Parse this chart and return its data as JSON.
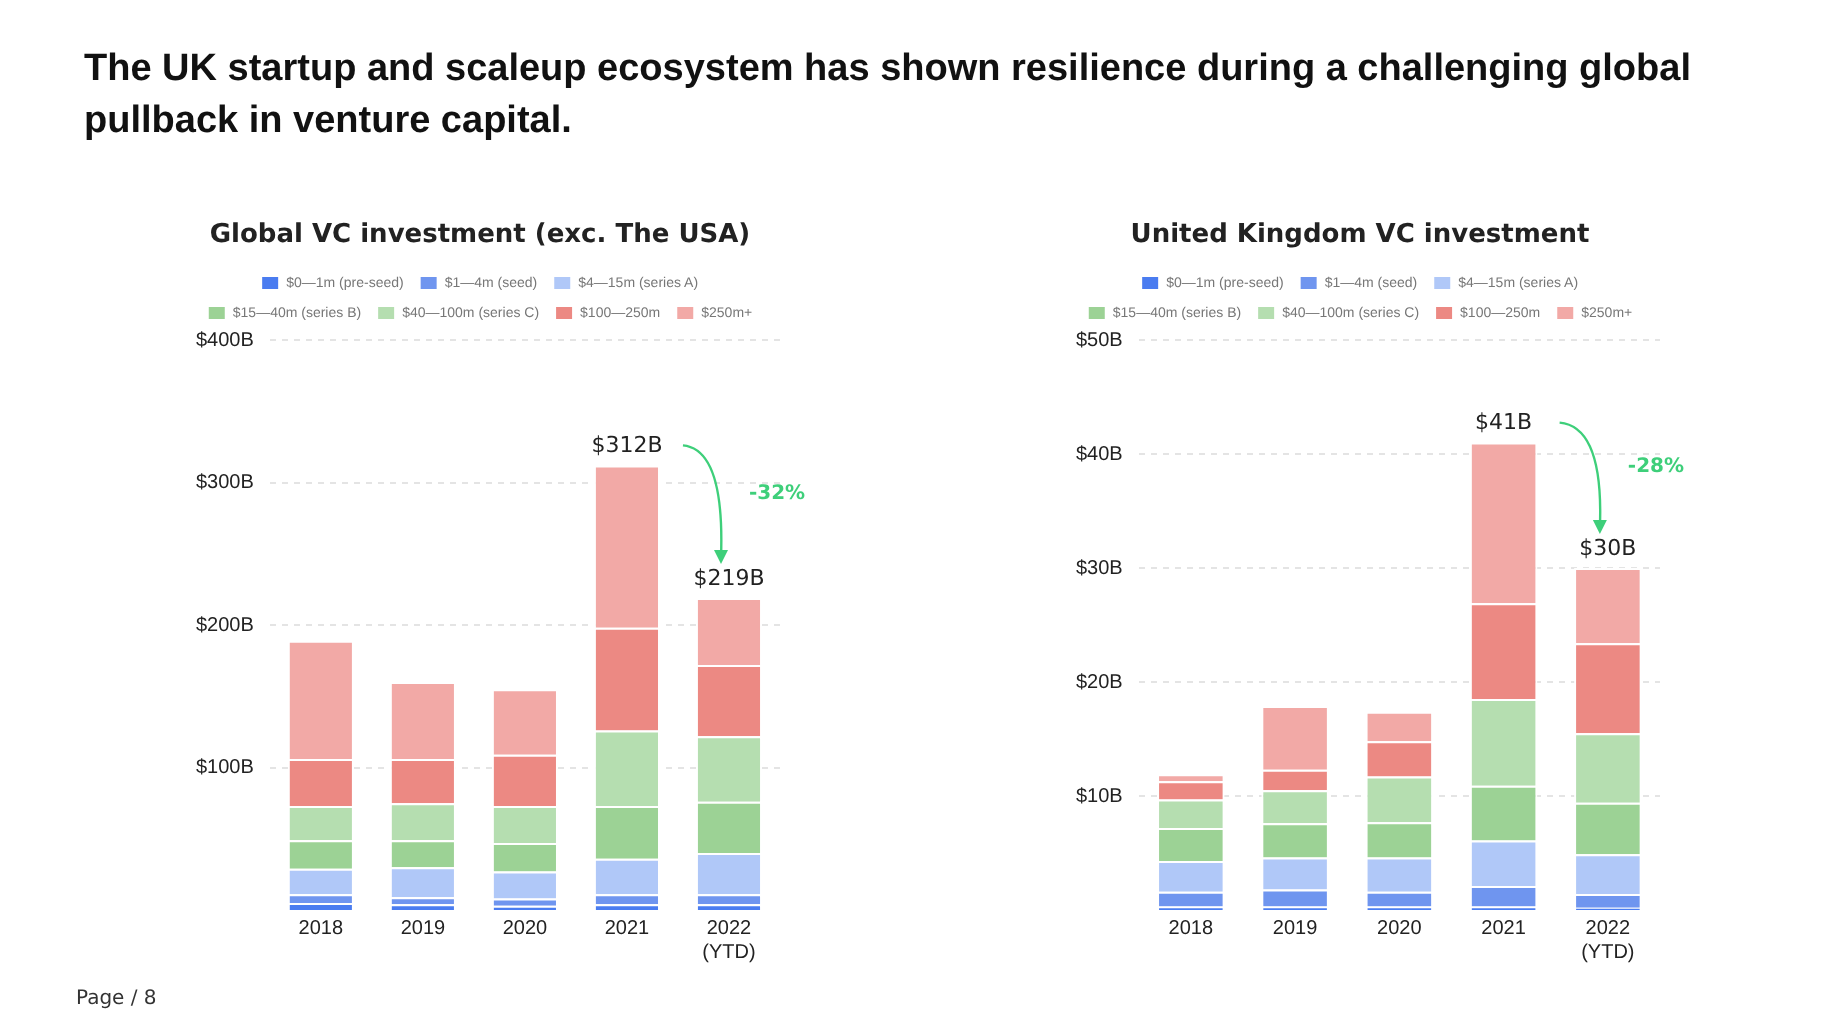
{
  "chart_data": [
    {
      "type": "bar",
      "title": "Global VC investment (exc. The USA)",
      "stacked": true,
      "legend": "top",
      "grid": "y",
      "annotations": [
        "The UK startup and scaleup ecosystem has shown resilience during a challenging global pullback in venture capital.",
        "-32%",
        "Page / 8"
      ],
      "categories": [
        "2018",
        "2019",
        "2020",
        "2021",
        "2022\n(YTD)"
      ],
      "ylim": [
        0,
        400
      ],
      "yticks": [
        {
          "value": 100,
          "label": "$100B"
        },
        {
          "value": 200,
          "label": "$200B"
        },
        {
          "value": 300,
          "label": "$300B"
        },
        {
          "value": 400,
          "label": "$400B"
        }
      ],
      "totals": [
        null,
        null,
        null,
        "$312B",
        "$219B"
      ],
      "series": [
        {
          "name": "$0—1m (pre-seed)",
          "color": "#4a7cf0",
          "values": [
            5,
            4,
            3,
            4,
            4
          ]
        },
        {
          "name": "$1—4m (seed)",
          "color": "#6f95ef",
          "values": [
            6,
            5,
            5,
            7,
            7
          ]
        },
        {
          "name": "$4—15m (series A)",
          "color": "#b0c8f8",
          "values": [
            18,
            21,
            19,
            25,
            29
          ]
        },
        {
          "name": "$15—40m (series B)",
          "color": "#9cd295",
          "values": [
            20,
            19,
            20,
            37,
            36
          ]
        },
        {
          "name": "$40—100m (series C)",
          "color": "#b5deb0",
          "values": [
            24,
            26,
            26,
            53,
            46
          ]
        },
        {
          "name": "$100—250m",
          "color": "#ec8983",
          "values": [
            33,
            31,
            36,
            72,
            50
          ]
        },
        {
          "name": "$250m+",
          "color": "#f2a9a6",
          "values": [
            83,
            54,
            46,
            114,
            47
          ]
        }
      ]
    },
    {
      "type": "bar",
      "title": "United Kingdom VC investment",
      "stacked": true,
      "legend": "top",
      "grid": "y",
      "annotations": [
        "-28%"
      ],
      "categories": [
        "2018",
        "2019",
        "2020",
        "2021",
        "2022\n(YTD)"
      ],
      "ylim": [
        0,
        50
      ],
      "yticks": [
        {
          "value": 10,
          "label": "$10B"
        },
        {
          "value": 20,
          "label": "$20B"
        },
        {
          "value": 30,
          "label": "$30B"
        },
        {
          "value": 40,
          "label": "$40B"
        },
        {
          "value": 50,
          "label": "$50B"
        }
      ],
      "totals": [
        null,
        null,
        null,
        "$41B",
        "$30B"
      ],
      "series": [
        {
          "name": "$0—1m (pre-seed)",
          "color": "#4a7cf0",
          "values": [
            0.3,
            0.3,
            0.3,
            0.3,
            0.2
          ]
        },
        {
          "name": "$1—4m (seed)",
          "color": "#6f95ef",
          "values": [
            1.3,
            1.5,
            1.3,
            1.8,
            1.2
          ]
        },
        {
          "name": "$4—15m (series A)",
          "color": "#b0c8f8",
          "values": [
            2.7,
            2.8,
            3.0,
            4.0,
            3.5
          ]
        },
        {
          "name": "$15—40m (series B)",
          "color": "#9cd295",
          "values": [
            2.9,
            3.0,
            3.1,
            4.8,
            4.5
          ]
        },
        {
          "name": "$40—100m (series C)",
          "color": "#b5deb0",
          "values": [
            2.5,
            2.9,
            4.0,
            7.6,
            6.1
          ]
        },
        {
          "name": "$100—250m",
          "color": "#ec8983",
          "values": [
            1.6,
            1.8,
            3.1,
            8.4,
            7.9
          ]
        },
        {
          "name": "$250m+",
          "color": "#f2a9a6",
          "values": [
            0.6,
            5.6,
            2.6,
            14.1,
            6.6
          ]
        }
      ]
    }
  ]
}
